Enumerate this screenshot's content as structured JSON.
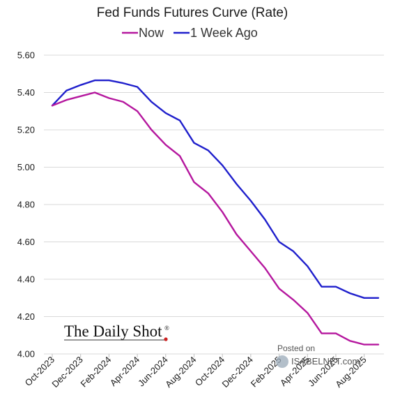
{
  "chart_data": {
    "type": "line",
    "title": "Fed Funds Futures Curve (Rate)",
    "xlabel": "",
    "ylabel": "",
    "ylim": [
      4.0,
      5.6
    ],
    "yticks": [
      "4.00",
      "4.20",
      "4.40",
      "4.60",
      "4.80",
      "5.00",
      "5.20",
      "5.40",
      "5.60"
    ],
    "grid": true,
    "legend": "top",
    "x": [
      "Oct-2023",
      "Nov-2023",
      "Dec-2023",
      "Jan-2024",
      "Feb-2024",
      "Mar-2024",
      "Apr-2024",
      "May-2024",
      "Jun-2024",
      "Jul-2024",
      "Aug-2024",
      "Sep-2024",
      "Oct-2024",
      "Nov-2024",
      "Dec-2024",
      "Jan-2025",
      "Feb-2025",
      "Mar-2025",
      "Apr-2025",
      "May-2025",
      "Jun-2025",
      "Jul-2025",
      "Aug-2025",
      "Sep-2025"
    ],
    "xtick_labels": [
      "Oct-2023",
      "Dec-2023",
      "Feb-2024",
      "Apr-2024",
      "Jun-2024",
      "Aug-2024",
      "Oct-2024",
      "Dec-2024",
      "Feb-2025",
      "Apr-2025",
      "Jun-2025",
      "Aug-2025"
    ],
    "series": [
      {
        "name": "Now",
        "color": "#b5179e",
        "values": [
          5.33,
          5.36,
          5.38,
          5.4,
          5.37,
          5.35,
          5.3,
          5.2,
          5.12,
          5.06,
          4.92,
          4.86,
          4.76,
          4.64,
          4.55,
          4.46,
          4.35,
          4.29,
          4.22,
          4.11,
          4.11,
          4.07,
          4.05,
          4.05
        ]
      },
      {
        "name": "1 Week Ago",
        "color": "#1f1fcc",
        "values": [
          5.33,
          5.41,
          5.44,
          5.465,
          5.465,
          5.45,
          5.43,
          5.35,
          5.29,
          5.25,
          5.13,
          5.09,
          5.01,
          4.91,
          4.82,
          4.72,
          4.6,
          4.55,
          4.47,
          4.36,
          4.36,
          4.325,
          4.3,
          4.3
        ]
      }
    ]
  },
  "watermark": {
    "brand": "The Daily Shot",
    "registered": "®",
    "posted": "Posted on",
    "site": "ISABELNET.com"
  }
}
